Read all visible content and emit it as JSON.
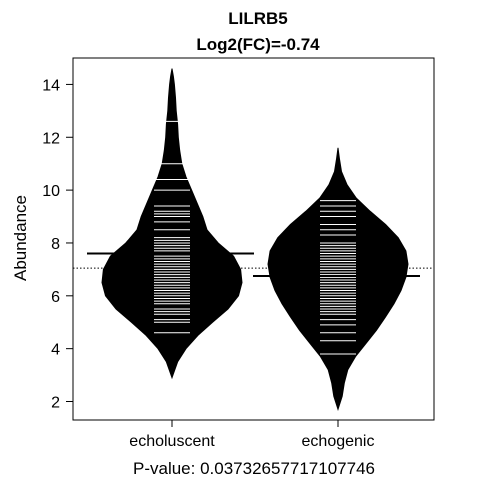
{
  "chart_data": {
    "type": "beanplot",
    "title": "LILRB5",
    "subtitle": "Log2(FC)=-0.74",
    "ylabel": "Abundance",
    "xlabel": "P-value: 0.03732657717107746",
    "ylim": [
      1.3,
      15
    ],
    "yticks": [
      2,
      4,
      6,
      8,
      10,
      12,
      14
    ],
    "overall_mean": 7.05,
    "groups": [
      {
        "name": "echoluscent",
        "mean": 7.6,
        "density": [
          [
            2.9,
            0
          ],
          [
            3.5,
            0.08
          ],
          [
            4.0,
            0.2
          ],
          [
            4.5,
            0.37
          ],
          [
            5.0,
            0.58
          ],
          [
            5.5,
            0.8
          ],
          [
            6.0,
            0.95
          ],
          [
            6.5,
            1.0
          ],
          [
            7.0,
            0.98
          ],
          [
            7.5,
            0.88
          ],
          [
            8.0,
            0.66
          ],
          [
            8.5,
            0.5
          ],
          [
            9.0,
            0.44
          ],
          [
            9.5,
            0.36
          ],
          [
            10.0,
            0.28
          ],
          [
            10.5,
            0.2
          ],
          [
            11.0,
            0.14
          ],
          [
            11.5,
            0.11
          ],
          [
            12.0,
            0.09
          ],
          [
            12.5,
            0.08
          ],
          [
            13.0,
            0.06
          ],
          [
            13.5,
            0.05
          ],
          [
            14.0,
            0.035
          ],
          [
            14.3,
            0.02
          ],
          [
            14.6,
            0
          ]
        ],
        "observations": [
          4.6,
          5.0,
          5.1,
          5.3,
          5.4,
          5.5,
          5.7,
          5.8,
          5.9,
          6.0,
          6.1,
          6.2,
          6.3,
          6.4,
          6.5,
          6.6,
          6.7,
          6.8,
          6.9,
          7.0,
          7.1,
          7.2,
          7.3,
          7.4,
          7.5,
          7.6,
          7.7,
          7.8,
          7.9,
          8.0,
          8.1,
          8.2,
          8.5,
          8.8,
          9.0,
          9.1,
          9.2,
          9.4,
          10.0,
          10.4,
          11.0,
          12.6
        ]
      },
      {
        "name": "echogenic",
        "mean": 6.75,
        "density": [
          [
            1.7,
            0
          ],
          [
            2.2,
            0.06
          ],
          [
            2.7,
            0.09
          ],
          [
            3.2,
            0.14
          ],
          [
            3.7,
            0.25
          ],
          [
            4.2,
            0.4
          ],
          [
            4.7,
            0.55
          ],
          [
            5.2,
            0.68
          ],
          [
            5.7,
            0.8
          ],
          [
            6.2,
            0.9
          ],
          [
            6.7,
            0.97
          ],
          [
            7.2,
            1.0
          ],
          [
            7.7,
            0.97
          ],
          [
            8.2,
            0.86
          ],
          [
            8.7,
            0.68
          ],
          [
            9.2,
            0.46
          ],
          [
            9.7,
            0.26
          ],
          [
            10.2,
            0.13
          ],
          [
            10.7,
            0.05
          ],
          [
            11.2,
            0.02
          ],
          [
            11.6,
            0
          ]
        ],
        "observations": [
          3.8,
          4.3,
          4.6,
          4.9,
          5.1,
          5.3,
          5.4,
          5.5,
          5.6,
          5.7,
          5.8,
          5.9,
          6.0,
          6.1,
          6.2,
          6.3,
          6.4,
          6.5,
          6.6,
          6.7,
          6.8,
          6.9,
          7.0,
          7.1,
          7.2,
          7.3,
          7.4,
          7.5,
          7.6,
          7.7,
          7.8,
          7.9,
          8.0,
          8.3,
          8.5,
          8.7,
          9.0,
          9.2,
          9.4,
          9.6
        ]
      }
    ],
    "colors": {
      "bean": "#000000",
      "observation_line": "#ffffff",
      "mean_line": "#000000"
    }
  }
}
